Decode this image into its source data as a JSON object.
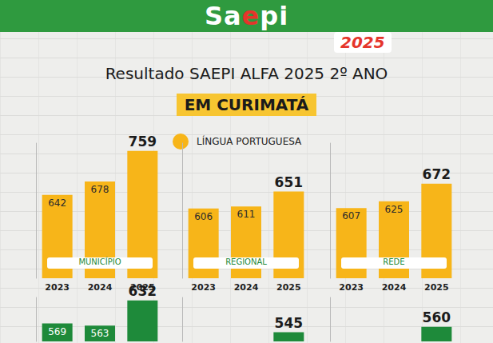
{
  "header": {
    "brand": "Saepi",
    "year": "2025",
    "title": "Resultado SAEPI ALFA 2025 2º ANO",
    "subtitle": "EM CURIMATÁ",
    "legend_text": "LÍNGUA PORTUGUESA"
  },
  "chart_data": [
    {
      "type": "bar",
      "title": "MUNICÍPIO",
      "categories": [
        "2023",
        "2024",
        "2025"
      ],
      "values": [
        642,
        678,
        759
      ],
      "color": "#f7b519",
      "ylim": [
        420,
        780
      ],
      "yticks": [],
      "data_labels": true,
      "tick_labels": "x"
    },
    {
      "type": "bar",
      "title": "REGIONAL",
      "categories": [
        "2023",
        "2024",
        "2025"
      ],
      "values": [
        606,
        611,
        651
      ],
      "color": "#f7b519",
      "ylim": [
        420,
        780
      ],
      "yticks": [],
      "data_labels": true,
      "tick_labels": "x"
    },
    {
      "type": "bar",
      "title": "REDE",
      "categories": [
        "2023",
        "2024",
        "2025"
      ],
      "values": [
        607,
        625,
        672
      ],
      "color": "#f7b519",
      "ylim": [
        420,
        780
      ],
      "yticks": [],
      "data_labels": true,
      "tick_labels": "x"
    },
    {
      "type": "bar",
      "categories": [
        null,
        null,
        null
      ],
      "values": [
        569,
        563,
        632
      ],
      "color": "#1e8a3a",
      "ylim": [
        520,
        640
      ],
      "yticks": [],
      "data_labels": true,
      "tick_labels": false
    },
    {
      "type": "bar",
      "categories": [
        null,
        null,
        null
      ],
      "values": [
        null,
        null,
        545
      ],
      "color": "#1e8a3a",
      "ylim": [
        520,
        640
      ],
      "yticks": [],
      "data_labels": true,
      "tick_labels": false
    },
    {
      "type": "bar",
      "categories": [
        null,
        null,
        null
      ],
      "values": [
        null,
        null,
        560
      ],
      "color": "#1e8a3a",
      "ylim": [
        520,
        640
      ],
      "yticks": [],
      "data_labels": true,
      "tick_labels": false
    }
  ]
}
